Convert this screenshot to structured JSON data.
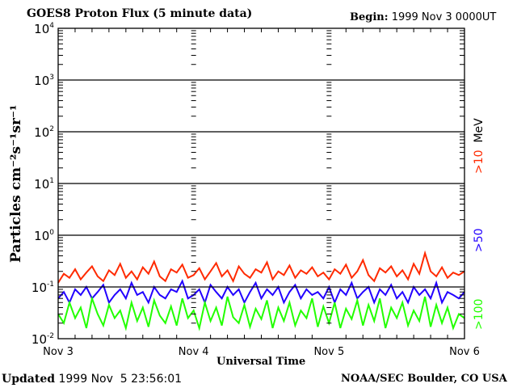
{
  "chart_data": {
    "type": "line",
    "title": "GOES8 Proton Flux (5 minute data)",
    "begin_label": "Begin:",
    "begin_value": "1999 Nov 3 0000UT",
    "xlabel": "Universal Time",
    "ylabel": "Particles cm⁻²s⁻¹sr⁻¹",
    "ylabel_parts": {
      "base": "Particles cm",
      "e1": "-2",
      "s": "s",
      "e2": "-1",
      "sr": "sr",
      "e3": "-1"
    },
    "yscale": "log",
    "ylim": [
      0.01,
      10000
    ],
    "yticks": [
      {
        "base": "10",
        "exp": "4"
      },
      {
        "base": "10",
        "exp": "3"
      },
      {
        "base": "10",
        "exp": "2"
      },
      {
        "base": "10",
        "exp": "1"
      },
      {
        "base": "10",
        "exp": "0"
      },
      {
        "base": "10",
        "exp": "-1"
      },
      {
        "base": "10",
        "exp": "-2"
      }
    ],
    "xticks": [
      "Nov 3",
      "Nov 4",
      "Nov 5",
      "Nov 6"
    ],
    "x_range_hours": [
      0,
      72
    ],
    "x_step_hours": 1,
    "grid": true,
    "unit_label": "MeV",
    "series": [
      {
        "name": ">10",
        "color": "#ff2a00",
        "values": [
          0.12,
          0.18,
          0.15,
          0.22,
          0.14,
          0.19,
          0.25,
          0.16,
          0.13,
          0.21,
          0.17,
          0.28,
          0.15,
          0.2,
          0.14,
          0.24,
          0.18,
          0.31,
          0.16,
          0.13,
          0.22,
          0.19,
          0.27,
          0.15,
          0.17,
          0.23,
          0.14,
          0.2,
          0.29,
          0.16,
          0.21,
          0.13,
          0.25,
          0.18,
          0.15,
          0.22,
          0.19,
          0.3,
          0.14,
          0.2,
          0.17,
          0.26,
          0.15,
          0.21,
          0.18,
          0.24,
          0.16,
          0.19,
          0.14,
          0.22,
          0.18,
          0.27,
          0.15,
          0.2,
          0.33,
          0.17,
          0.13,
          0.23,
          0.19,
          0.25,
          0.16,
          0.21,
          0.14,
          0.28,
          0.18,
          0.45,
          0.2,
          0.16,
          0.24,
          0.15,
          0.19,
          0.17,
          0.2
        ]
      },
      {
        "name": ">50",
        "color": "#2200ff",
        "values": [
          0.06,
          0.08,
          0.05,
          0.09,
          0.07,
          0.1,
          0.06,
          0.08,
          0.11,
          0.05,
          0.07,
          0.09,
          0.06,
          0.12,
          0.07,
          0.08,
          0.05,
          0.1,
          0.07,
          0.06,
          0.09,
          0.08,
          0.13,
          0.06,
          0.07,
          0.09,
          0.05,
          0.11,
          0.08,
          0.06,
          0.1,
          0.07,
          0.09,
          0.05,
          0.08,
          0.12,
          0.06,
          0.09,
          0.07,
          0.1,
          0.05,
          0.08,
          0.11,
          0.06,
          0.09,
          0.07,
          0.08,
          0.06,
          0.1,
          0.05,
          0.09,
          0.07,
          0.12,
          0.06,
          0.08,
          0.1,
          0.05,
          0.09,
          0.07,
          0.11,
          0.06,
          0.08,
          0.05,
          0.1,
          0.07,
          0.09,
          0.06,
          0.12,
          0.05,
          0.08,
          0.07,
          0.06,
          0.08
        ]
      },
      {
        "name": ">100",
        "color": "#22ff00",
        "values": [
          0.03,
          0.02,
          0.05,
          0.025,
          0.04,
          0.016,
          0.06,
          0.03,
          0.018,
          0.045,
          0.025,
          0.035,
          0.016,
          0.05,
          0.022,
          0.04,
          0.017,
          0.055,
          0.028,
          0.02,
          0.042,
          0.018,
          0.06,
          0.025,
          0.035,
          0.016,
          0.05,
          0.022,
          0.04,
          0.018,
          0.065,
          0.026,
          0.02,
          0.045,
          0.017,
          0.038,
          0.024,
          0.055,
          0.016,
          0.04,
          0.022,
          0.05,
          0.018,
          0.035,
          0.025,
          0.06,
          0.017,
          0.042,
          0.02,
          0.05,
          0.016,
          0.038,
          0.024,
          0.055,
          0.018,
          0.045,
          0.022,
          0.06,
          0.016,
          0.04,
          0.025,
          0.05,
          0.018,
          0.035,
          0.022,
          0.065,
          0.017,
          0.045,
          0.02,
          0.04,
          0.016,
          0.03,
          0.025
        ]
      }
    ]
  },
  "footer": {
    "updated_label": "Updated",
    "updated_value": "1999 Nov  5 23:56:01",
    "credit": "NOAA/SEC Boulder, CO USA"
  }
}
